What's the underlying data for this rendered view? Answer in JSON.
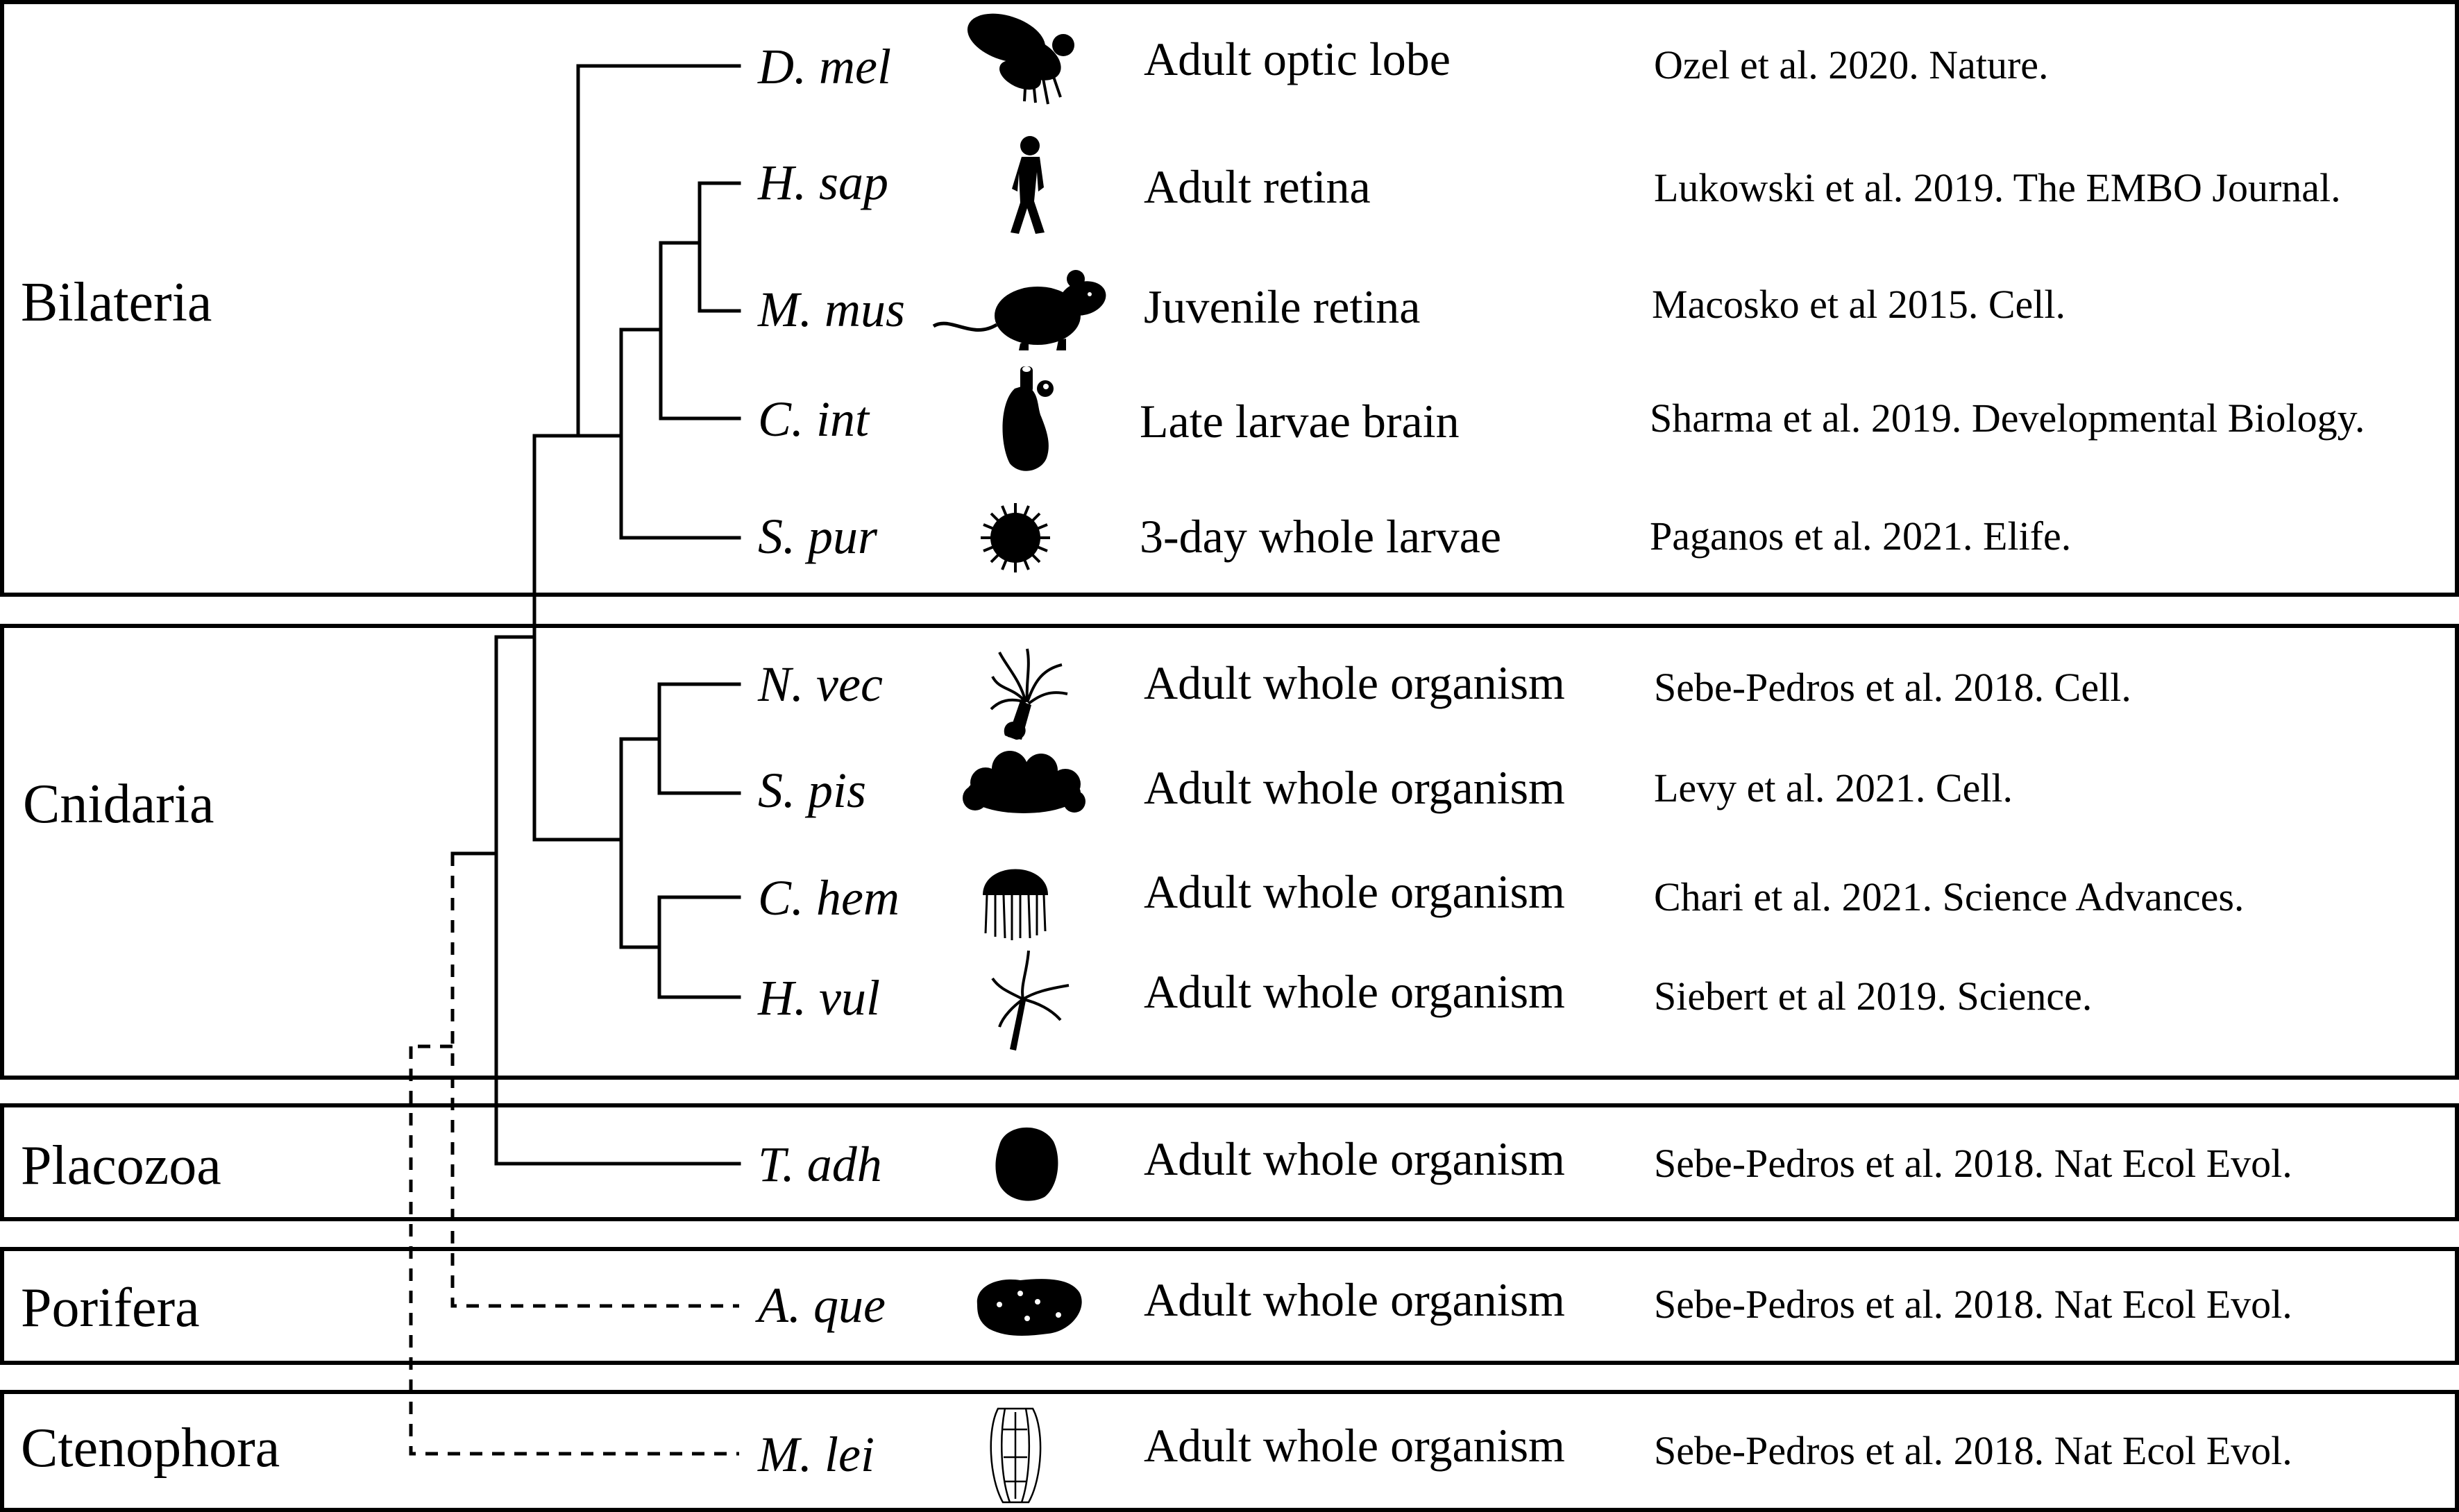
{
  "groups": [
    {
      "id": "bilateria",
      "label": "Bilateria"
    },
    {
      "id": "cnidaria",
      "label": "Cnidaria"
    },
    {
      "id": "placozoa",
      "label": "Placozoa"
    },
    {
      "id": "porifera",
      "label": "Porifera"
    },
    {
      "id": "ctenophora",
      "label": "Ctenophora"
    }
  ],
  "rows": [
    {
      "species": "D. mel",
      "icon": "fly-icon",
      "tissue": "Adult optic lobe",
      "citation": "Ozel et al. 2020. Nature."
    },
    {
      "species": "H. sap",
      "icon": "human-icon",
      "tissue": "Adult retina",
      "citation": "Lukowski et al. 2019. The EMBO Journal."
    },
    {
      "species": "M. mus",
      "icon": "mouse-icon",
      "tissue": "Juvenile retina",
      "citation": "Macosko et al 2015. Cell."
    },
    {
      "species": "C. int",
      "icon": "ciona-icon",
      "tissue": "Late larvae brain",
      "citation": "Sharma et al. 2019. Developmental Biology."
    },
    {
      "species": "S. pur",
      "icon": "sea-urchin-icon",
      "tissue": "3-day whole larvae",
      "citation": "Paganos et al. 2021. Elife."
    },
    {
      "species": "N. vec",
      "icon": "sea-anemone-icon",
      "tissue": "Adult whole organism",
      "citation": "Sebe-Pedros et al. 2018. Cell."
    },
    {
      "species": "S. pis",
      "icon": "coral-icon",
      "tissue": "Adult whole organism",
      "citation": "Levy et al. 2021. Cell."
    },
    {
      "species": "C. hem",
      "icon": "jellyfish-icon",
      "tissue": "Adult whole organism",
      "citation": "Chari et al. 2021. Science Advances."
    },
    {
      "species": "H. vul",
      "icon": "hydra-icon",
      "tissue": "Adult whole organism",
      "citation": "Siebert et al 2019. Science."
    },
    {
      "species": "T. adh",
      "icon": "placozoan-icon",
      "tissue": "Adult whole organism",
      "citation": "Sebe-Pedros et al. 2018. Nat Ecol Evol."
    },
    {
      "species": "A. que",
      "icon": "sponge-icon",
      "tissue": "Adult whole organism",
      "citation": "Sebe-Pedros et al. 2018. Nat Ecol Evol."
    },
    {
      "species": "M. lei",
      "icon": "comb-jelly-icon",
      "tissue": "Adult whole organism",
      "citation": "Sebe-Pedros et al. 2018. Nat Ecol Evol."
    }
  ],
  "tree_style": {
    "line_color": "#000000",
    "uncertain_branches": "dashed"
  }
}
